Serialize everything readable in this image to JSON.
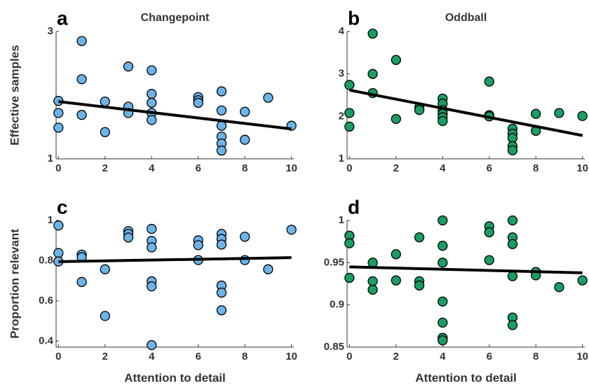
{
  "chart_data": [
    {
      "type": "scatter",
      "panel": "a",
      "title": "Changepoint",
      "ylabel": "Effective samples",
      "color": "#6cb4e8",
      "x": [
        0,
        0,
        0,
        1,
        1,
        1,
        2,
        2,
        3,
        3,
        3,
        4,
        4,
        4,
        4,
        4,
        6,
        6,
        6,
        7,
        7,
        7,
        7,
        7,
        7,
        8,
        8,
        9,
        10
      ],
      "values": [
        1.91,
        1.72,
        1.49,
        2.85,
        2.25,
        1.69,
        1.9,
        1.42,
        2.45,
        1.82,
        1.72,
        2.39,
        2.02,
        1.88,
        1.72,
        1.61,
        1.97,
        1.92,
        1.88,
        2.06,
        1.76,
        1.52,
        1.35,
        1.24,
        1.13,
        1.74,
        1.3,
        1.96,
        1.52
      ],
      "trend": {
        "x": [
          0,
          10
        ],
        "values": [
          1.9,
          1.47
        ]
      },
      "xlim": [
        -0.1,
        10.1
      ],
      "ylim": [
        1,
        3
      ],
      "xticks": [
        0,
        2,
        4,
        6,
        8,
        10
      ],
      "yticks": [
        1,
        3
      ]
    },
    {
      "type": "scatter",
      "panel": "b",
      "title": "Oddball",
      "color": "#1a9e63",
      "x": [
        0,
        0,
        0,
        1,
        1,
        1,
        2,
        2,
        3,
        3,
        4,
        4,
        4,
        4,
        4,
        4,
        6,
        6,
        6,
        7,
        7,
        7,
        7,
        7,
        8,
        8,
        9,
        10
      ],
      "values": [
        2.74,
        2.08,
        1.76,
        3.95,
        3.0,
        2.55,
        3.33,
        1.94,
        2.21,
        2.15,
        2.42,
        2.3,
        2.15,
        2.06,
        1.98,
        1.89,
        2.82,
        2.03,
        2.0,
        1.71,
        1.59,
        1.49,
        1.3,
        1.2,
        2.06,
        1.66,
        2.08,
        2.01
      ],
      "trend": {
        "x": [
          0,
          10
        ],
        "values": [
          2.62,
          1.55
        ]
      },
      "xlim": [
        -0.1,
        10.1
      ],
      "ylim": [
        1,
        4
      ],
      "xticks": [
        0,
        2,
        4,
        6,
        8,
        10
      ],
      "yticks": [
        1,
        2,
        3,
        4
      ]
    },
    {
      "type": "scatter",
      "panel": "c",
      "ylabel": "Proportion relevant",
      "xlabel": "Attention to detail",
      "color": "#6cb4e8",
      "x": [
        0,
        0,
        0,
        1,
        1,
        1,
        2,
        2,
        3,
        3,
        3,
        4,
        4,
        4,
        4,
        4,
        4,
        6,
        6,
        6,
        7,
        7,
        7,
        7,
        7,
        7,
        8,
        8,
        9,
        10
      ],
      "values": [
        0.975,
        0.838,
        0.796,
        0.83,
        0.817,
        0.694,
        0.757,
        0.525,
        0.947,
        0.933,
        0.915,
        0.958,
        0.898,
        0.866,
        0.697,
        0.672,
        0.38,
        0.901,
        0.877,
        0.803,
        0.933,
        0.908,
        0.88,
        0.676,
        0.641,
        0.553,
        0.919,
        0.803,
        0.757,
        0.954
      ],
      "trend": {
        "x": [
          0,
          10
        ],
        "values": [
          0.795,
          0.815
        ]
      },
      "xlim": [
        -0.1,
        10.1
      ],
      "ylim": [
        0.37,
        1.0
      ],
      "xticks": [
        0,
        2,
        4,
        6,
        8,
        10
      ],
      "yticks": [
        0.4,
        0.6,
        0.8,
        1
      ]
    },
    {
      "type": "scatter",
      "panel": "d",
      "xlabel": "Attention to detail",
      "color": "#1a9e63",
      "x": [
        0,
        0,
        0,
        1,
        1,
        1,
        2,
        2,
        3,
        3,
        3,
        4,
        4,
        4,
        4,
        4,
        4,
        4,
        6,
        6,
        6,
        7,
        7,
        7,
        7,
        7,
        7,
        8,
        8,
        9,
        10
      ],
      "values": [
        0.982,
        0.973,
        0.932,
        0.95,
        0.928,
        0.918,
        0.96,
        0.929,
        0.98,
        0.928,
        0.923,
        1.0,
        0.97,
        0.95,
        0.879,
        0.861,
        0.858,
        0.904,
        0.993,
        0.986,
        0.953,
        1.0,
        0.98,
        0.972,
        0.934,
        0.885,
        0.876,
        0.939,
        0.935,
        0.921,
        0.929
      ],
      "trend": {
        "x": [
          0,
          10
        ],
        "values": [
          0.945,
          0.938
        ]
      },
      "xlim": [
        -0.1,
        10.1
      ],
      "ylim": [
        0.85,
        1.0
      ],
      "xticks": [
        0,
        2,
        4,
        6,
        8,
        10
      ],
      "yticks": [
        0.85,
        0.9,
        0.95,
        1
      ]
    }
  ]
}
